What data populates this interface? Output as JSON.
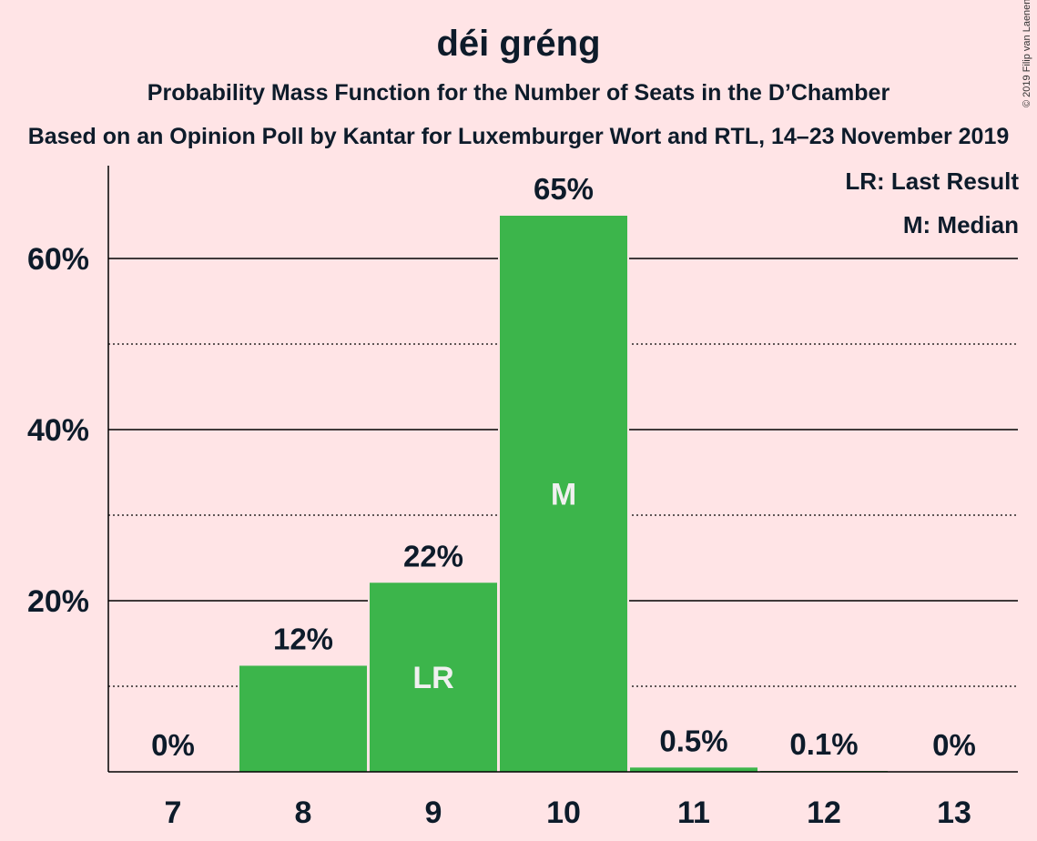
{
  "title": "déi gréng",
  "subtitle": "Probability Mass Function for the Number of Seats in the D’Chamber",
  "subtitle2": "Based on an Opinion Poll by Kantar for Luxemburger Wort and RTL, 14–23 November 2019",
  "copyright": "© 2019 Filip van Laenen",
  "legend": {
    "last_result": "LR: Last Result",
    "median": "M: Median"
  },
  "colors": {
    "background": "#ffe4e6",
    "bar": "#3cb54b",
    "text": "#0d1b2a"
  },
  "chart_data": {
    "type": "bar",
    "categories": [
      "7",
      "8",
      "9",
      "10",
      "11",
      "12",
      "13"
    ],
    "values": [
      0,
      12.4,
      22.1,
      65.0,
      0.5,
      0.1,
      0
    ],
    "value_labels": [
      "0%",
      "12%",
      "22%",
      "65%",
      "0.5%",
      "0.1%",
      "0%"
    ],
    "bar_markers": [
      "",
      "",
      "LR",
      "M",
      "",
      "",
      ""
    ],
    "ylim": [
      0,
      70
    ],
    "yticks": [
      20,
      40,
      60
    ],
    "ytick_labels": [
      "20%",
      "40%",
      "60%"
    ],
    "minor_gridlines": [
      10,
      30,
      50
    ],
    "grid": true,
    "legend_placement": "top-right",
    "title": "déi gréng",
    "xlabel": "",
    "ylabel": ""
  }
}
